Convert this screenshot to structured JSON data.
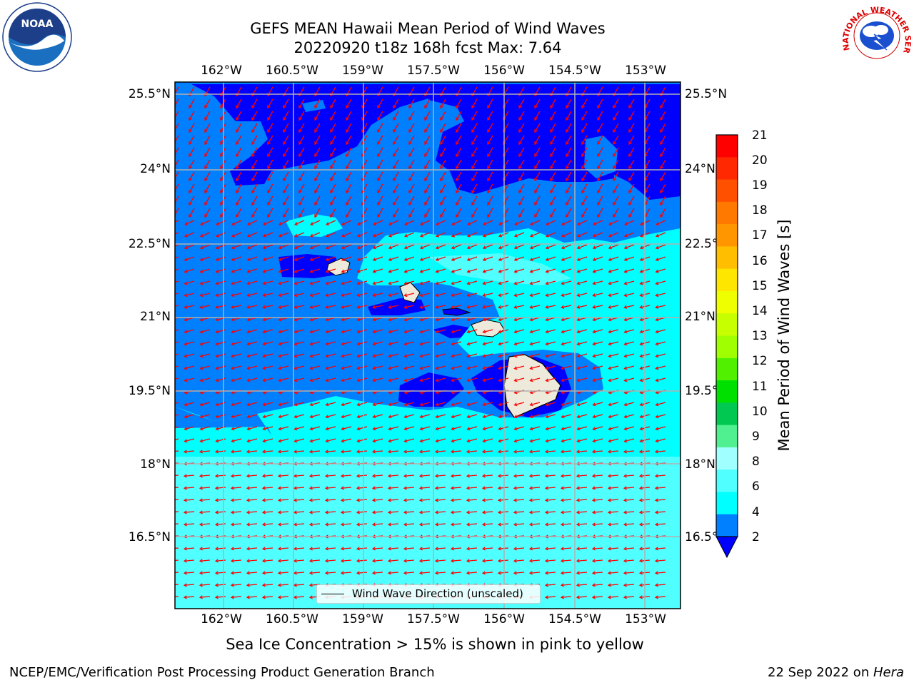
{
  "title_line1": "GEFS MEAN Hawaii Mean Period of Wind Waves",
  "title_line2": "20220920 t18z 168h fcst   Max: 7.64",
  "lon_ticks": [
    "162°W",
    "160.5°W",
    "159°W",
    "157.5°W",
    "156°W",
    "154.5°W",
    "153°W"
  ],
  "lat_ticks": [
    "25.5°N",
    "24°N",
    "22.5°N",
    "21°N",
    "19.5°N",
    "18°N",
    "16.5°N"
  ],
  "colorbar": {
    "label": "Mean Period of Wind Waves [s]",
    "ticks": [
      "21",
      "20",
      "19",
      "18",
      "17",
      "16",
      "15",
      "14",
      "13",
      "12",
      "11",
      "10",
      "9",
      "8",
      "6",
      "4",
      "2"
    ],
    "colors": [
      "#ff0000",
      "#ff2800",
      "#ff5000",
      "#ff7800",
      "#ff9600",
      "#ffbe00",
      "#ffe600",
      "#f0ff00",
      "#c8ff00",
      "#a0ff00",
      "#50f000",
      "#00e000",
      "#00c850",
      "#50f090",
      "#a0ffff",
      "#50ffff",
      "#00ffff",
      "#0080ff"
    ],
    "under_color": "#0000ff"
  },
  "legend_label": "Wind Wave Direction (unscaled)",
  "subnote": "Sea Ice Concentration > 15% is shown in pink to yellow",
  "footer_left": "NCEP/EMC/Verification Post Processing Product Generation Branch",
  "footer_date": "22 Sep 2022 on ",
  "footer_host": "Hera",
  "logos": {
    "noaa": "NOAA",
    "nws": "NATIONAL WEATHER SERVICE"
  },
  "chart_data": {
    "type": "map",
    "field": "Mean Period of Wind Waves",
    "units": "s",
    "max": 7.64,
    "levels": [
      2,
      4,
      6,
      8,
      9,
      10,
      11,
      12,
      13,
      14,
      15,
      16,
      17,
      18,
      19,
      20,
      21
    ],
    "vector_field": "Wind Wave Direction (unscaled)",
    "vector_color": "#ff0000",
    "land_color": "#eeeadb",
    "lon_range": [
      -163,
      -152.3
    ],
    "lat_range": [
      15.5,
      25.7
    ]
  }
}
